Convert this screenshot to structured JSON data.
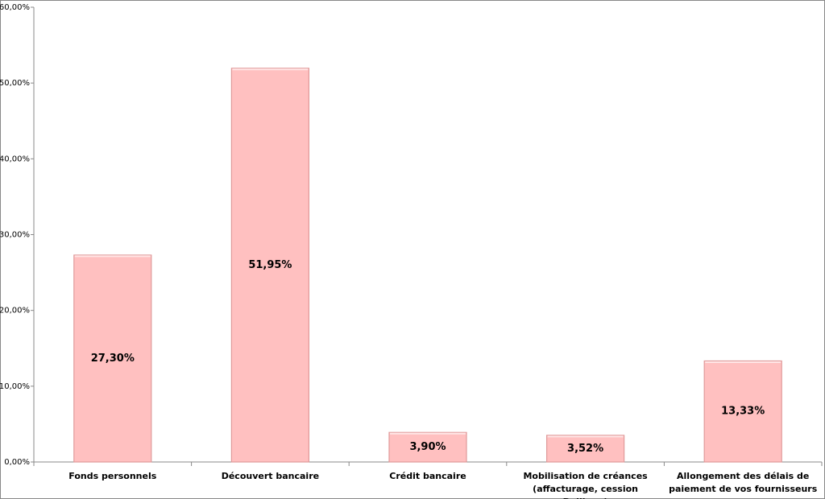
{
  "chart_data": {
    "type": "bar",
    "categories": [
      "Fonds personnels",
      "Découvert bancaire",
      "Crédit bancaire",
      "Mobilisation de créances (affacturage, cession Dailly,...)",
      "Allongement des délais de paiement de vos fournisseurs"
    ],
    "values": [
      27.3,
      51.95,
      3.9,
      3.52,
      13.33
    ],
    "value_labels": [
      "27,30%",
      "51,95%",
      "3,90%",
      "3,52%",
      "13,33%"
    ],
    "color": "#ffc0c0",
    "ylim": [
      0,
      60
    ],
    "yticks": [
      {
        "value": 0,
        "label": "0,00%"
      },
      {
        "value": 10,
        "label": "10,00%"
      },
      {
        "value": 20,
        "label": "20,00%"
      },
      {
        "value": 30,
        "label": "30,00%"
      },
      {
        "value": 40,
        "label": "40,00%"
      },
      {
        "value": 50,
        "label": "50,00%"
      },
      {
        "value": 60,
        "label": "60,00%"
      }
    ],
    "grid": false
  }
}
